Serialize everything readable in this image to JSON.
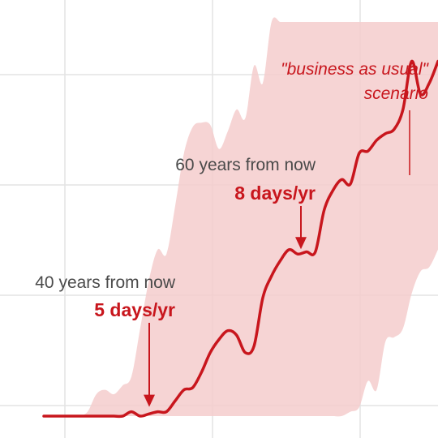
{
  "chart_data": {
    "type": "line",
    "title": "",
    "xlabel": "",
    "ylabel": "",
    "grid": true,
    "xlim": [
      0,
      100
    ],
    "ylim": [
      0,
      10
    ],
    "colors": {
      "line": "#c8161d",
      "band": "#f5cdcd",
      "grid": "#e3e3e3",
      "annotation_gray": "#4a4a4a",
      "annotation_red": "#c8161d"
    },
    "series": [
      {
        "x": [
          10,
          12,
          14,
          16,
          18,
          20,
          22,
          24,
          26,
          28,
          30,
          32,
          34,
          36,
          38,
          40,
          42,
          44,
          46,
          48,
          50,
          52,
          54,
          56,
          58,
          60,
          62,
          64,
          66,
          68,
          70,
          72,
          74,
          76,
          78,
          80,
          82,
          84,
          86,
          88,
          90,
          92,
          94,
          96,
          98,
          100
        ],
        "y": [
          0.5,
          0.5,
          0.5,
          0.5,
          0.5,
          0.5,
          0.5,
          0.5,
          0.5,
          0.5,
          0.6,
          0.5,
          0.55,
          0.6,
          0.6,
          0.85,
          1.1,
          1.15,
          1.5,
          1.95,
          2.25,
          2.45,
          2.35,
          1.95,
          2.1,
          3.2,
          3.7,
          4.05,
          4.3,
          4.2,
          4.25,
          4.25,
          5.2,
          5.65,
          5.9,
          5.8,
          6.5,
          6.55,
          6.8,
          6.95,
          7.05,
          7.5,
          8.6,
          7.85,
          8.1,
          8.6
        ],
        "band_upper": [
          0.5,
          0.5,
          0.5,
          0.5,
          0.5,
          0.6,
          1,
          1.1,
          1,
          1.2,
          1.4,
          2.5,
          3.6,
          4.3,
          4.2,
          5.3,
          6.5,
          7.1,
          7.2,
          7.15,
          6.6,
          7,
          7.5,
          7.3,
          8.5,
          8.1,
          9.5,
          9.5,
          9.5,
          9.5,
          9.5,
          9.5,
          9.5,
          9.5,
          9.5,
          9.5,
          9.5,
          9.5,
          9.5,
          9.5,
          9.5,
          9.5,
          9.5,
          9.5,
          9.5,
          9.5
        ],
        "band_lower": [
          0.5,
          0.5,
          0.5,
          0.5,
          0.5,
          0.5,
          0.5,
          0.5,
          0.5,
          0.5,
          0.5,
          0.5,
          0.5,
          0.5,
          0.5,
          0.5,
          0.5,
          0.5,
          0.5,
          0.5,
          0.5,
          0.5,
          0.5,
          0.5,
          0.5,
          0.5,
          0.5,
          0.5,
          0.5,
          0.5,
          0.5,
          0.5,
          0.5,
          0.5,
          0.5,
          0.6,
          0.7,
          1.3,
          1.1,
          2.2,
          2.3,
          2.5,
          3.3,
          3.8,
          3.9,
          4.3
        ]
      }
    ],
    "annotations": [
      {
        "line1": "40 years from now",
        "line2": "5 days/yr",
        "x": 35,
        "y": 0.6
      },
      {
        "line1": "60 years from now",
        "line2": "8 days/yr",
        "x": 69,
        "y": 4.2
      },
      {
        "line1": "\"business as usual\"",
        "line2": "scenario",
        "x": 93,
        "y": 7.5
      }
    ]
  }
}
